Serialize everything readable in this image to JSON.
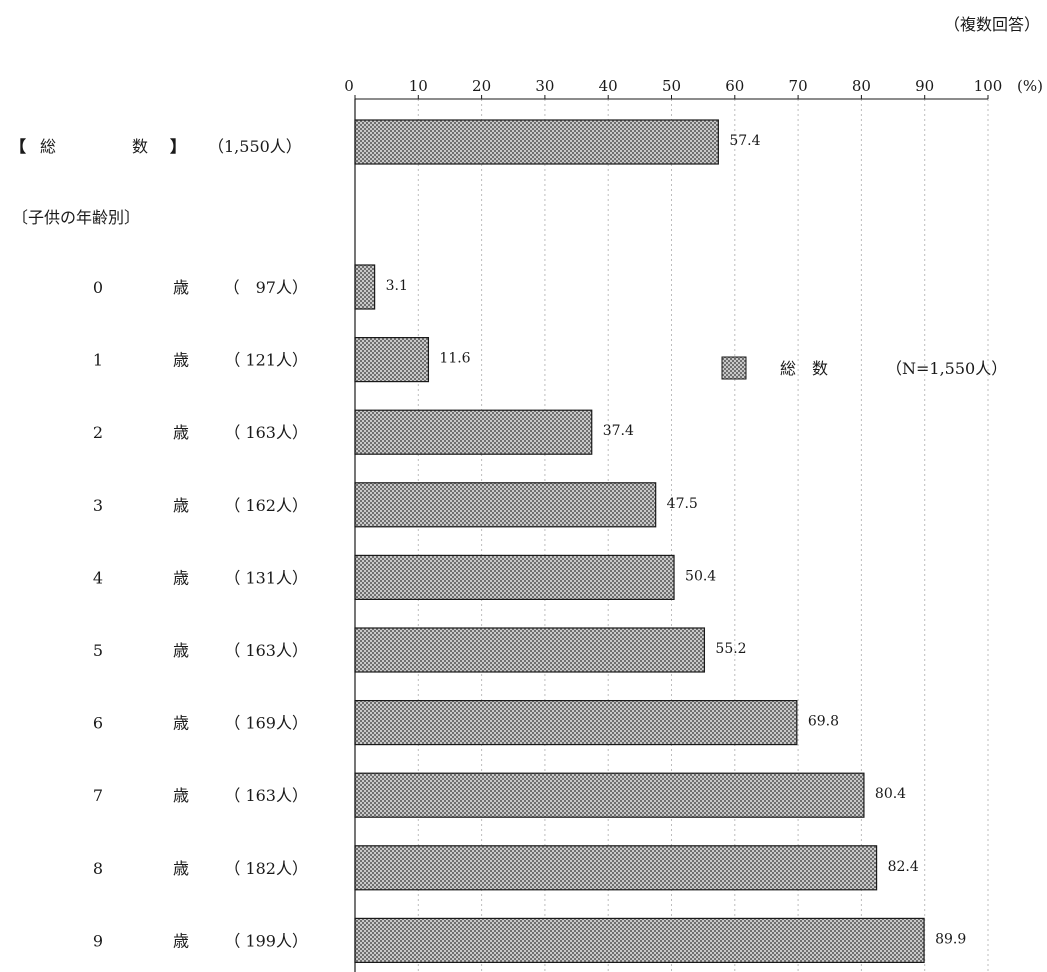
{
  "header": {
    "note": "（複数回答）"
  },
  "chart_data": {
    "type": "bar",
    "orientation": "horizontal",
    "unit_label": "(%)",
    "xlim": [
      0,
      100
    ],
    "x_ticks": [
      0,
      10,
      20,
      30,
      40,
      50,
      60,
      70,
      80,
      90,
      100
    ],
    "grid": true,
    "total_row": {
      "label_open": "【",
      "label_char1": "総",
      "label_char2": "数",
      "label_close": "】",
      "count": "（1,550人）",
      "value": 57.4
    },
    "section_label": "〔子供の年齢別〕",
    "rows": [
      {
        "age": "0",
        "unit": "歳",
        "count": "（　97人）",
        "value": 3.1
      },
      {
        "age": "1",
        "unit": "歳",
        "count": "（ 121人）",
        "value": 11.6
      },
      {
        "age": "2",
        "unit": "歳",
        "count": "（ 163人）",
        "value": 37.4
      },
      {
        "age": "3",
        "unit": "歳",
        "count": "（ 162人）",
        "value": 47.5
      },
      {
        "age": "4",
        "unit": "歳",
        "count": "（ 131人）",
        "value": 50.4
      },
      {
        "age": "5",
        "unit": "歳",
        "count": "（ 163人）",
        "value": 55.2
      },
      {
        "age": "6",
        "unit": "歳",
        "count": "（ 169人）",
        "value": 69.8
      },
      {
        "age": "7",
        "unit": "歳",
        "count": "（ 163人）",
        "value": 80.4
      },
      {
        "age": "8",
        "unit": "歳",
        "count": "（ 182人）",
        "value": 82.4
      },
      {
        "age": "9",
        "unit": "歳",
        "count": "（ 199人）",
        "value": 89.9
      }
    ],
    "legend": {
      "name": "総　数",
      "note": "（N=1,550人）",
      "position": "right"
    },
    "bar_color": "#9a9a9a"
  }
}
